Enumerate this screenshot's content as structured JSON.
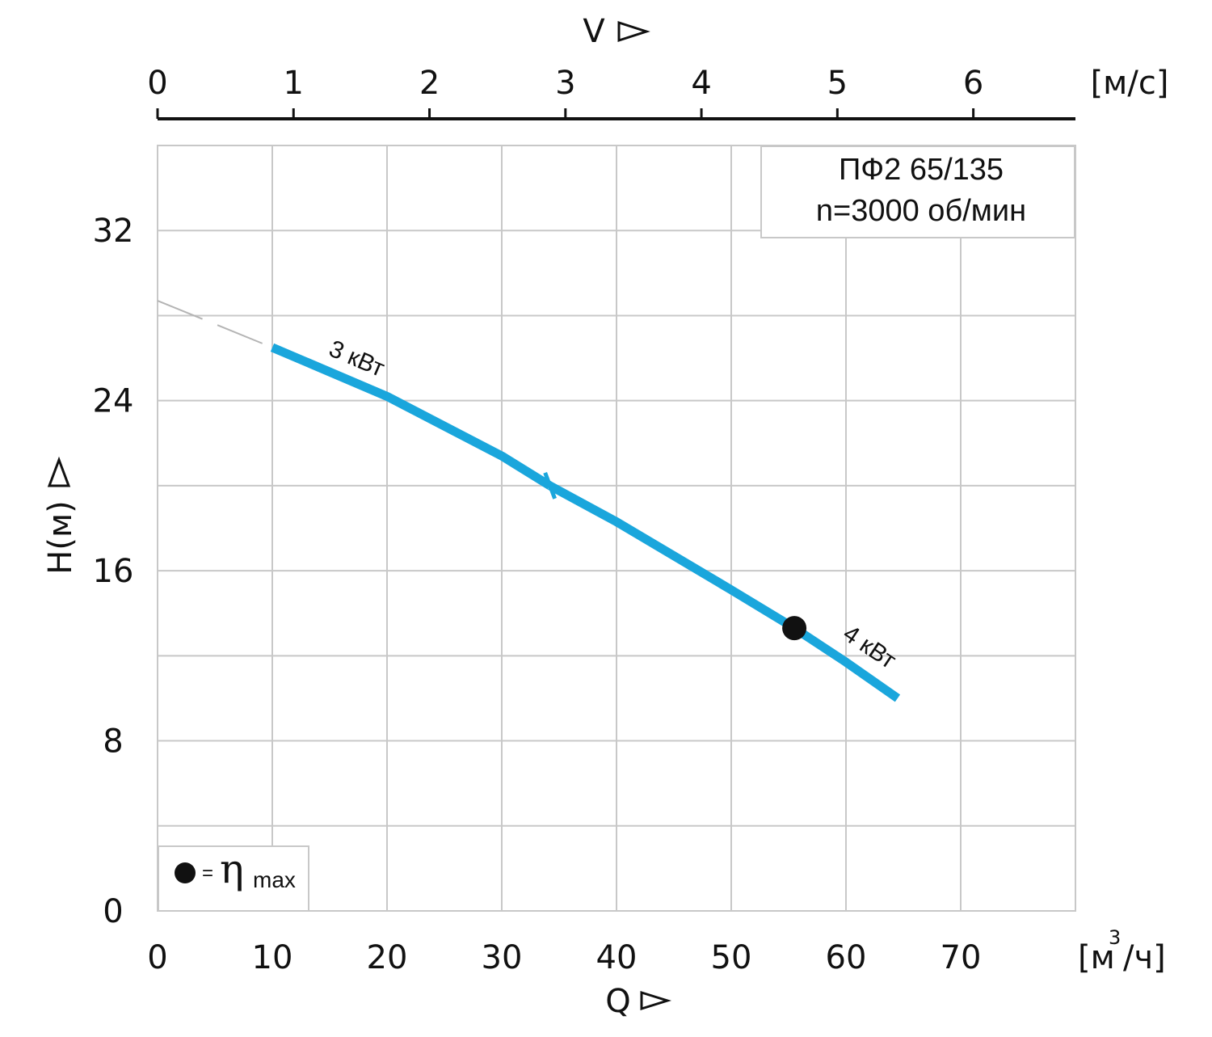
{
  "chart_data": {
    "type": "line",
    "info_box": {
      "line1": "ПФ2 65/135",
      "line2": "n=3000 об/мин"
    },
    "x_axis": {
      "title": "Q",
      "unit": "[м³/ч]",
      "unit_main": "[м",
      "unit_sup": "3",
      "unit_tail": "/ч]",
      "range": [
        0,
        80
      ],
      "tick_values": [
        0,
        10,
        20,
        30,
        40,
        50,
        60,
        70
      ],
      "tick_labels": [
        "0",
        "10",
        "20",
        "30",
        "40",
        "50",
        "60",
        "70"
      ]
    },
    "y_axis": {
      "title": "H(м)",
      "range": [
        0,
        36
      ],
      "tick_values": [
        0,
        8,
        16,
        24,
        32
      ],
      "tick_labels": [
        "0",
        "8",
        "16",
        "24",
        "32"
      ],
      "minor_grid": [
        4,
        12,
        20,
        28
      ]
    },
    "top_axis": {
      "title": "V",
      "unit": "[м/с]",
      "tick_values": [
        0,
        1,
        2,
        3,
        4,
        5,
        6
      ],
      "tick_labels": [
        "0",
        "1",
        "2",
        "3",
        "4",
        "5",
        "6"
      ],
      "q_per_unit": 11.85
    },
    "grid": true,
    "series": [
      {
        "name": "3 кВт",
        "color": "#1aa6dc",
        "x": [
          10,
          20,
          30,
          34.2
        ],
        "y": [
          26.5,
          24.2,
          21.4,
          20.0
        ]
      },
      {
        "name": "4 кВт",
        "color": "#1aa6dc",
        "x": [
          34.2,
          40,
          50,
          55.5,
          60,
          64.5
        ],
        "y": [
          20.0,
          18.3,
          15.1,
          13.3,
          11.7,
          10.0
        ]
      }
    ],
    "extrapolation": {
      "color": "#b4b4b4",
      "x": [
        0,
        10
      ],
      "y": [
        28.7,
        26.5
      ]
    },
    "series_divider_x": 34.2,
    "eta_max_point": {
      "x": 55.5,
      "y": 13.3
    },
    "legend": {
      "eta_symbol": "η",
      "eta_label": "= ",
      "eta_sub": "max"
    }
  }
}
